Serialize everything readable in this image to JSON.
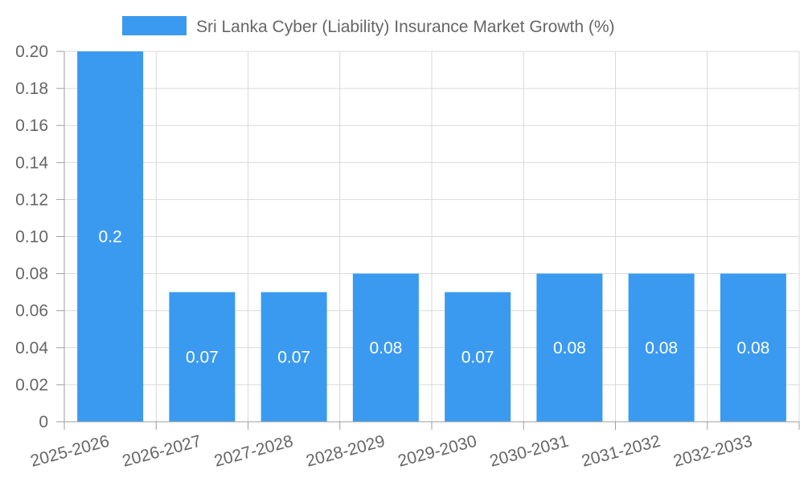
{
  "chart_data": {
    "type": "bar",
    "title": "",
    "xlabel": "",
    "ylabel": "",
    "categories": [
      "2025-2026",
      "2026-2027",
      "2027-2028",
      "2028-2029",
      "2029-2030",
      "2030-2031",
      "2031-2032",
      "2032-2033"
    ],
    "series": [
      {
        "name": "Sri Lanka Cyber (Liability) Insurance Market Growth (%)",
        "values": [
          0.2,
          0.07,
          0.07,
          0.08,
          0.07,
          0.08,
          0.08,
          0.08
        ],
        "labels": [
          "0.2",
          "0.07",
          "0.07",
          "0.08",
          "0.07",
          "0.08",
          "0.08",
          "0.08"
        ],
        "color": "#3a9af0"
      }
    ],
    "ylim": [
      0,
      0.2
    ],
    "yticks": [
      0,
      0.02,
      0.04,
      0.06,
      0.08,
      0.1,
      0.12,
      0.14,
      0.16,
      0.18,
      0.2
    ],
    "ytick_labels": [
      "0",
      "0.02",
      "0.04",
      "0.06",
      "0.08",
      "0.10",
      "0.12",
      "0.14",
      "0.16",
      "0.18",
      "0.20"
    ],
    "grid": true,
    "legend_position": "top-center"
  },
  "colors": {
    "bar": "#3a9af0",
    "grid": "#d9d9d9",
    "axis": "#9e9e9e",
    "text": "#666666",
    "data_label": "#ffffff"
  }
}
